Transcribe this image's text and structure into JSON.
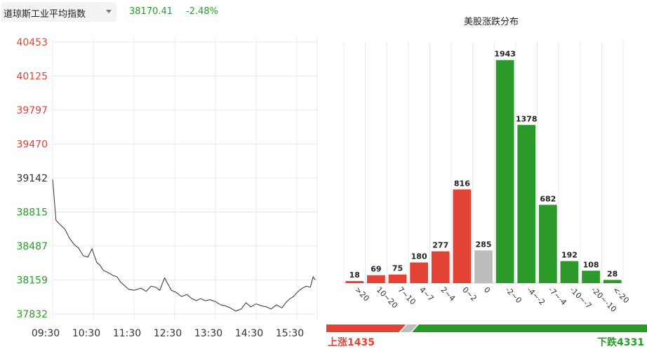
{
  "header": {
    "index_name": "道琼斯工业平均指数",
    "price": "38170.41",
    "change_pct": "-2.48%"
  },
  "distribution": {
    "title": "美股涨跌分布",
    "up_label": "上涨1435",
    "down_label": "下跌4331",
    "up_count": 1435,
    "flat_count": 285,
    "down_count": 4331
  },
  "colors": {
    "up": "#e34234",
    "down": "#2b9a2b",
    "flat": "#bdbdbd",
    "line": "#333333"
  },
  "chart_data": [
    {
      "type": "line",
      "x_ticks": [
        "09:30",
        "10:30",
        "11:30",
        "12:30",
        "13:30",
        "14:30",
        "15:30"
      ],
      "y_ticks": [
        {
          "label": "40453",
          "color": "up"
        },
        {
          "label": "40125",
          "color": "up"
        },
        {
          "label": "39797",
          "color": "up"
        },
        {
          "label": "39470",
          "color": "up"
        },
        {
          "label": "39142",
          "color": "neutral"
        },
        {
          "label": "38815",
          "color": "down"
        },
        {
          "label": "38487",
          "color": "down"
        },
        {
          "label": "38159",
          "color": "down"
        },
        {
          "label": "37832",
          "color": "down"
        }
      ],
      "ylim": [
        37832,
        40453
      ],
      "xlim": [
        0,
        390
      ],
      "series": [
        {
          "x": [
            0,
            5,
            10,
            18,
            25,
            32,
            38,
            45,
            52,
            58,
            65,
            70,
            75,
            82,
            90,
            95,
            100,
            105,
            112,
            120,
            130,
            138,
            145,
            152,
            158,
            165,
            170,
            175,
            182,
            190,
            198,
            205,
            212,
            218,
            225,
            232,
            240,
            248,
            255,
            262,
            270,
            278,
            285,
            292,
            300,
            308,
            315,
            322,
            330,
            338,
            345,
            350,
            355,
            362,
            368,
            374,
            380,
            384,
            387
          ],
          "y": [
            39130,
            38735,
            38700,
            38650,
            38560,
            38500,
            38470,
            38395,
            38380,
            38460,
            38330,
            38300,
            38250,
            38230,
            38200,
            38190,
            38140,
            38110,
            38070,
            38060,
            38080,
            38050,
            38100,
            38090,
            38060,
            38180,
            38120,
            38060,
            38040,
            38000,
            38020,
            37980,
            37960,
            37980,
            37960,
            37970,
            37950,
            37920,
            37910,
            37890,
            37860,
            37880,
            37940,
            37900,
            37930,
            37910,
            37900,
            37880,
            37920,
            37890,
            37950,
            37980,
            38000,
            38050,
            38080,
            38100,
            38090,
            38190,
            38160
          ]
        }
      ]
    },
    {
      "type": "bar",
      "title": "美股涨跌分布",
      "categories": [
        ">20",
        "10~20",
        "7~10",
        "4~7",
        "2~4",
        "0~2",
        "0",
        "-2~0",
        "-4~-2",
        "-7~-4",
        "-10~-7",
        "-20~-10",
        "<-20"
      ],
      "values": [
        18,
        69,
        75,
        180,
        277,
        816,
        285,
        1943,
        1378,
        682,
        192,
        108,
        28
      ],
      "bar_colors": [
        "up",
        "up",
        "up",
        "up",
        "up",
        "up",
        "flat",
        "down",
        "down",
        "down",
        "down",
        "down",
        "down"
      ],
      "ylim": [
        0,
        2100
      ]
    }
  ]
}
